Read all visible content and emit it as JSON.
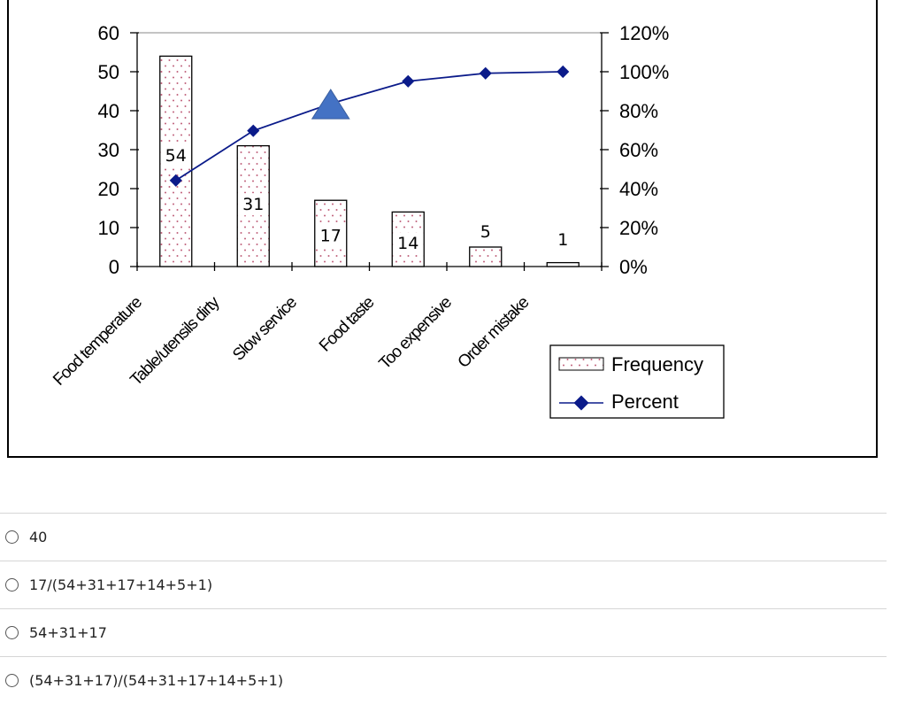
{
  "chart_data": {
    "type": "bar",
    "categories": [
      "Food temperature",
      "Table/utensils dirty",
      "Slow service",
      "Food taste",
      "Too expensive",
      "Order mistake"
    ],
    "series": [
      {
        "name": "Frequency",
        "type": "bar",
        "axis": "left",
        "values": [
          54,
          31,
          17,
          14,
          5,
          1
        ],
        "labels": [
          "54",
          "31",
          "17",
          "14",
          "5",
          "1"
        ]
      },
      {
        "name": "Percent",
        "type": "line",
        "axis": "right",
        "values": [
          0.442,
          0.697,
          0.836,
          0.951,
          0.992,
          1.0
        ]
      }
    ],
    "y_left": {
      "range": [
        0,
        60
      ],
      "ticks": [
        "0",
        "10",
        "20",
        "30",
        "40",
        "50",
        "60"
      ]
    },
    "y_right": {
      "range": [
        0,
        1.2
      ],
      "ticks": [
        "0%",
        "20%",
        "40%",
        "60%",
        "80%",
        "100%",
        "120%"
      ]
    },
    "marker": {
      "shape": "triangle",
      "category": "Slow service",
      "value": 0.836,
      "color": "#4472c4"
    },
    "legend": {
      "position": "right",
      "items": [
        "Frequency",
        "Percent"
      ]
    },
    "grid": false,
    "colors": {
      "bar_dots": "#c0607a",
      "line": "#0b1b8a",
      "marker": "#4472c4"
    }
  },
  "options": [
    {
      "label": "40"
    },
    {
      "label": "17/(54+31+17+14+5+1)"
    },
    {
      "label": "54+31+17"
    },
    {
      "label": "(54+31+17)/(54+31+17+14+5+1)"
    }
  ]
}
